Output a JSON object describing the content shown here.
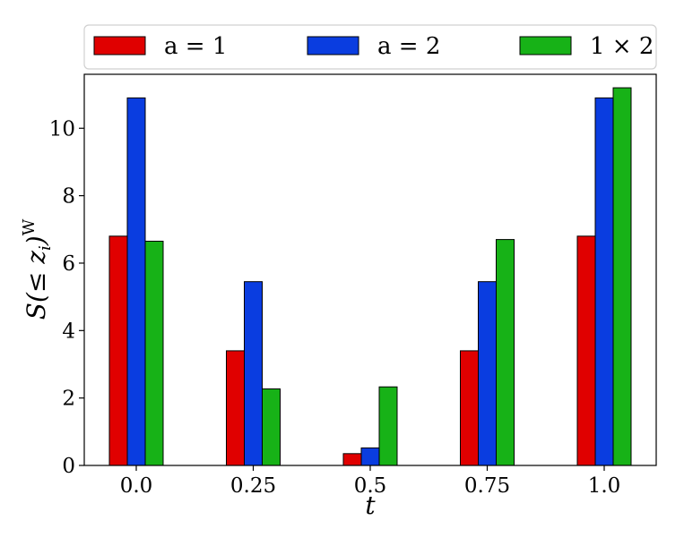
{
  "chart_data": {
    "type": "bar",
    "categories": [
      "0.0",
      "0.25",
      "0.5",
      "0.75",
      "1.0"
    ],
    "series": [
      {
        "name": "a = 1",
        "color": "#e00000",
        "values": [
          6.8,
          3.4,
          0.35,
          3.4,
          6.8
        ]
      },
      {
        "name": "a = 2",
        "color": "#0a3de0",
        "values": [
          10.9,
          5.45,
          0.52,
          5.45,
          10.9
        ]
      },
      {
        "name": "1 × 2",
        "color": "#17b217",
        "values": [
          6.65,
          2.27,
          2.33,
          6.7,
          11.2
        ]
      }
    ],
    "xlabel": "t",
    "ylabel": "S(≤ z_i)^W",
    "ylabel_parts": {
      "main": "S(≤ z",
      "sub": "i",
      "close": ")",
      "sup": "W"
    },
    "yticks": [
      "0",
      "2",
      "4",
      "6",
      "8",
      "10"
    ],
    "ylim": [
      0,
      11.6
    ],
    "grid": false,
    "legend_position": "top"
  }
}
